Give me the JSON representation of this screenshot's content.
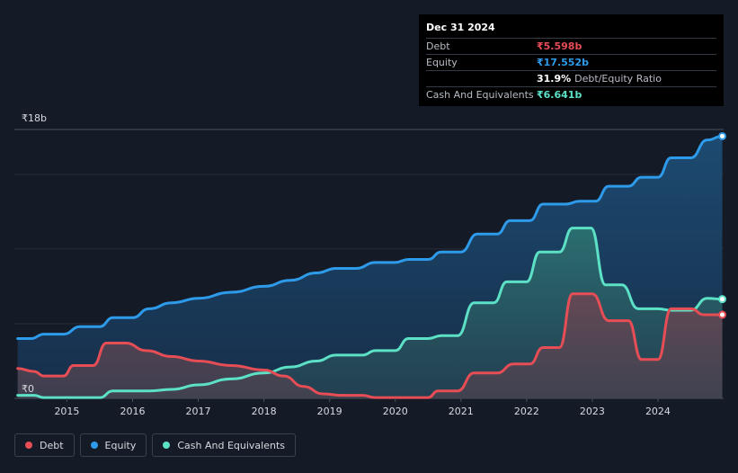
{
  "tooltip": {
    "date": "Dec 31 2024",
    "rows": [
      {
        "label": "Debt",
        "value": "₹5.598b",
        "color": "#e64d55"
      },
      {
        "label": "Equity",
        "value": "₹17.552b",
        "color": "#2e9bea"
      },
      {
        "label": "",
        "value": "31.9%",
        "suffix": "Debt/Equity Ratio",
        "color": "#ffffff"
      },
      {
        "label": "Cash And Equivalents",
        "value": "₹6.641b",
        "color": "#5ce0c6"
      }
    ]
  },
  "legend": [
    {
      "label": "Debt",
      "color": "#e64d55"
    },
    {
      "label": "Equity",
      "color": "#2e9bea"
    },
    {
      "label": "Cash And Equivalents",
      "color": "#5ce0c6"
    }
  ],
  "chart_data": {
    "type": "area",
    "y_top_label": "₹18b",
    "y_bottom_label": "₹0",
    "ylim": [
      0,
      18
    ],
    "xlim": [
      2014.2,
      2025.0
    ],
    "x_ticks": [
      2015,
      2016,
      2017,
      2018,
      2019,
      2020,
      2021,
      2022,
      2023,
      2024
    ],
    "x_tick_labels": [
      "2015",
      "2016",
      "2017",
      "2018",
      "2019",
      "2020",
      "2021",
      "2022",
      "2023",
      "2024"
    ],
    "series": [
      {
        "name": "Debt",
        "color": "#e64d55",
        "points": [
          [
            2014.25,
            2.0
          ],
          [
            2014.5,
            1.8
          ],
          [
            2014.65,
            1.5
          ],
          [
            2014.95,
            1.5
          ],
          [
            2015.1,
            2.2
          ],
          [
            2015.4,
            2.2
          ],
          [
            2015.6,
            3.7
          ],
          [
            2015.9,
            3.7
          ],
          [
            2016.2,
            3.2
          ],
          [
            2016.6,
            2.8
          ],
          [
            2017.0,
            2.5
          ],
          [
            2017.5,
            2.2
          ],
          [
            2018.0,
            1.9
          ],
          [
            2018.3,
            1.5
          ],
          [
            2018.6,
            0.8
          ],
          [
            2018.9,
            0.3
          ],
          [
            2019.2,
            0.2
          ],
          [
            2019.5,
            0.2
          ],
          [
            2019.7,
            0.05
          ],
          [
            2020.1,
            0.05
          ],
          [
            2020.5,
            0.05
          ],
          [
            2020.65,
            0.5
          ],
          [
            2020.95,
            0.5
          ],
          [
            2021.2,
            1.7
          ],
          [
            2021.55,
            1.7
          ],
          [
            2021.8,
            2.3
          ],
          [
            2022.05,
            2.3
          ],
          [
            2022.25,
            3.4
          ],
          [
            2022.5,
            3.4
          ],
          [
            2022.7,
            7.0
          ],
          [
            2023.0,
            7.0
          ],
          [
            2023.25,
            5.2
          ],
          [
            2023.55,
            5.2
          ],
          [
            2023.75,
            2.6
          ],
          [
            2024.0,
            2.6
          ],
          [
            2024.2,
            6.0
          ],
          [
            2024.5,
            6.0
          ],
          [
            2024.7,
            5.6
          ],
          [
            2024.98,
            5.598
          ]
        ]
      },
      {
        "name": "Equity",
        "color": "#2e9bea",
        "points": [
          [
            2014.25,
            4.0
          ],
          [
            2014.45,
            4.0
          ],
          [
            2014.65,
            4.3
          ],
          [
            2014.95,
            4.3
          ],
          [
            2015.2,
            4.8
          ],
          [
            2015.5,
            4.8
          ],
          [
            2015.7,
            5.4
          ],
          [
            2016.0,
            5.4
          ],
          [
            2016.25,
            6.0
          ],
          [
            2016.6,
            6.4
          ],
          [
            2017.0,
            6.7
          ],
          [
            2017.5,
            7.1
          ],
          [
            2018.0,
            7.5
          ],
          [
            2018.4,
            7.9
          ],
          [
            2018.8,
            8.4
          ],
          [
            2019.1,
            8.7
          ],
          [
            2019.4,
            8.7
          ],
          [
            2019.7,
            9.1
          ],
          [
            2020.0,
            9.1
          ],
          [
            2020.2,
            9.3
          ],
          [
            2020.5,
            9.3
          ],
          [
            2020.7,
            9.8
          ],
          [
            2021.0,
            9.8
          ],
          [
            2021.25,
            11.0
          ],
          [
            2021.55,
            11.0
          ],
          [
            2021.75,
            11.9
          ],
          [
            2022.05,
            11.9
          ],
          [
            2022.25,
            13.0
          ],
          [
            2022.6,
            13.0
          ],
          [
            2022.8,
            13.2
          ],
          [
            2023.05,
            13.2
          ],
          [
            2023.25,
            14.2
          ],
          [
            2023.55,
            14.2
          ],
          [
            2023.75,
            14.8
          ],
          [
            2024.0,
            14.8
          ],
          [
            2024.2,
            16.1
          ],
          [
            2024.5,
            16.1
          ],
          [
            2024.75,
            17.3
          ],
          [
            2024.98,
            17.552
          ]
        ]
      },
      {
        "name": "Cash And Equivalents",
        "color": "#5ce0c6",
        "points": [
          [
            2014.25,
            0.2
          ],
          [
            2014.5,
            0.2
          ],
          [
            2014.65,
            0.05
          ],
          [
            2015.5,
            0.05
          ],
          [
            2015.7,
            0.5
          ],
          [
            2016.25,
            0.5
          ],
          [
            2016.6,
            0.6
          ],
          [
            2017.0,
            0.9
          ],
          [
            2017.5,
            1.3
          ],
          [
            2018.0,
            1.7
          ],
          [
            2018.4,
            2.1
          ],
          [
            2018.8,
            2.5
          ],
          [
            2019.1,
            2.9
          ],
          [
            2019.5,
            2.9
          ],
          [
            2019.7,
            3.2
          ],
          [
            2020.0,
            3.2
          ],
          [
            2020.2,
            4.0
          ],
          [
            2020.5,
            4.0
          ],
          [
            2020.7,
            4.2
          ],
          [
            2020.95,
            4.2
          ],
          [
            2021.2,
            6.4
          ],
          [
            2021.5,
            6.4
          ],
          [
            2021.7,
            7.8
          ],
          [
            2022.0,
            7.8
          ],
          [
            2022.2,
            9.8
          ],
          [
            2022.5,
            9.8
          ],
          [
            2022.7,
            11.4
          ],
          [
            2022.98,
            11.4
          ],
          [
            2023.2,
            7.6
          ],
          [
            2023.45,
            7.6
          ],
          [
            2023.7,
            6.0
          ],
          [
            2024.0,
            6.0
          ],
          [
            2024.2,
            5.9
          ],
          [
            2024.5,
            5.9
          ],
          [
            2024.75,
            6.7
          ],
          [
            2024.98,
            6.641
          ]
        ]
      }
    ],
    "grid": true
  }
}
